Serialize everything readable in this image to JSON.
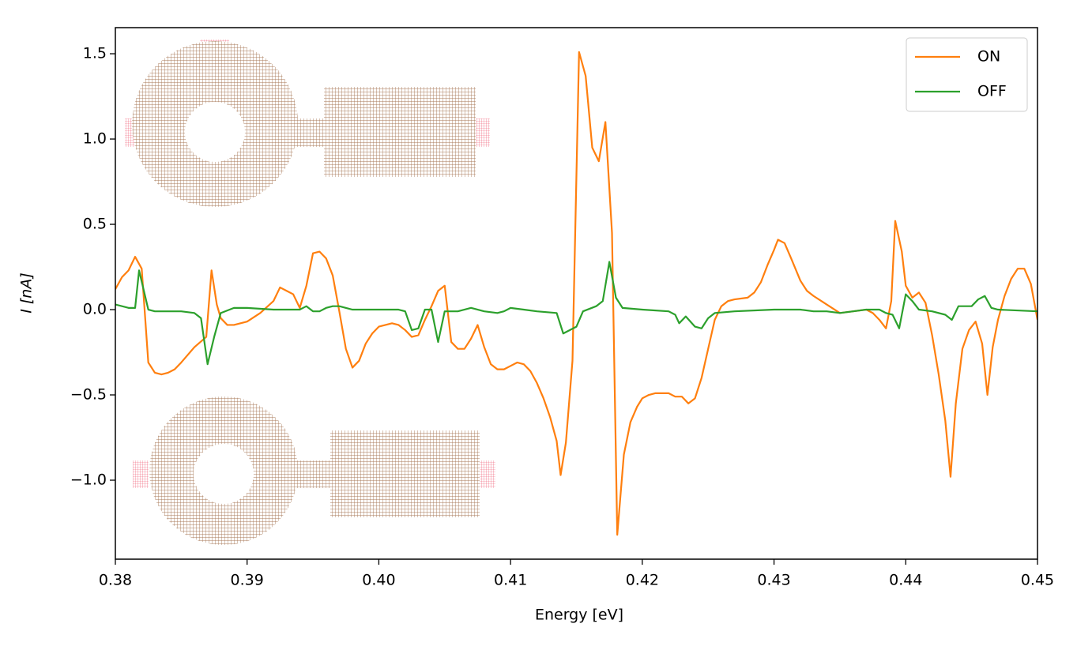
{
  "chart_data": {
    "type": "line",
    "x_label": "Energy [eV]",
    "y_label": "I [nA]",
    "xlim": [
      0.38,
      0.45
    ],
    "xticks": [
      0.38,
      0.39,
      {
        "value": 0.4,
        "label": "0.40"
      },
      0.41,
      0.42,
      0.43,
      0.44,
      0.45
    ],
    "ylim": [
      -1.463,
      1.653
    ],
    "yticks": [
      {
        "value": -1.0,
        "label": "−1.0"
      },
      {
        "value": -0.5,
        "label": "−0.5"
      },
      {
        "value": 0.0,
        "label": "0.0"
      },
      {
        "value": 0.5,
        "label": "0.5"
      },
      {
        "value": 1.0,
        "label": "1.0"
      },
      {
        "value": 1.5,
        "label": "1.5"
      }
    ],
    "legend": "upper right",
    "series": [
      {
        "name": "ON",
        "color": "#ff7f0e",
        "x": [
          0.38,
          0.3805,
          0.381,
          0.3815,
          0.382,
          0.3825,
          0.383,
          0.3835,
          0.384,
          0.3845,
          0.385,
          0.386,
          0.3869,
          0.3873,
          0.3877,
          0.388,
          0.3885,
          0.389,
          0.39,
          0.391,
          0.392,
          0.3925,
          0.393,
          0.3935,
          0.394,
          0.3945,
          0.395,
          0.3955,
          0.396,
          0.3965,
          0.397,
          0.3975,
          0.398,
          0.3985,
          0.399,
          0.3995,
          0.4,
          0.4005,
          0.401,
          0.4015,
          0.402,
          0.4025,
          0.403,
          0.4035,
          0.404,
          0.4045,
          0.405,
          0.4055,
          0.406,
          0.4065,
          0.407,
          0.4075,
          0.408,
          0.4085,
          0.409,
          0.4095,
          0.41,
          0.4105,
          0.411,
          0.4115,
          0.412,
          0.4125,
          0.413,
          0.4135,
          0.4138,
          0.4142,
          0.4147,
          0.4152,
          0.4157,
          0.4162,
          0.4167,
          0.4172,
          0.4177,
          0.4181,
          0.4186,
          0.4191,
          0.4196,
          0.42,
          0.4205,
          0.421,
          0.422,
          0.4225,
          0.423,
          0.4235,
          0.424,
          0.4245,
          0.425,
          0.4255,
          0.426,
          0.4265,
          0.427,
          0.428,
          0.4285,
          0.429,
          0.4295,
          0.43,
          0.4303,
          0.4308,
          0.4313,
          0.432,
          0.4325,
          0.433,
          0.434,
          0.435,
          0.436,
          0.437,
          0.4375,
          0.438,
          0.4385,
          0.4389,
          0.4392,
          0.4397,
          0.44,
          0.4405,
          0.441,
          0.4415,
          0.442,
          0.4425,
          0.443,
          0.4434,
          0.4438,
          0.4443,
          0.4448,
          0.4453,
          0.4458,
          0.4462,
          0.4466,
          0.447,
          0.4475,
          0.448,
          0.4485,
          0.449,
          0.4495,
          0.45
        ],
        "values": [
          0.12,
          0.19,
          0.23,
          0.31,
          0.24,
          -0.31,
          -0.37,
          -0.38,
          -0.37,
          -0.35,
          -0.31,
          -0.22,
          -0.16,
          0.23,
          0.03,
          -0.05,
          -0.09,
          -0.09,
          -0.07,
          -0.02,
          0.05,
          0.13,
          0.11,
          0.09,
          0.01,
          0.14,
          0.33,
          0.34,
          0.3,
          0.2,
          -0.01,
          -0.23,
          -0.34,
          -0.3,
          -0.2,
          -0.14,
          -0.1,
          -0.09,
          -0.08,
          -0.09,
          -0.12,
          -0.16,
          -0.15,
          -0.06,
          0.02,
          0.11,
          0.14,
          -0.19,
          -0.23,
          -0.23,
          -0.17,
          -0.09,
          -0.22,
          -0.32,
          -0.35,
          -0.35,
          -0.33,
          -0.31,
          -0.32,
          -0.36,
          -0.43,
          -0.52,
          -0.63,
          -0.77,
          -0.97,
          -0.78,
          -0.3,
          1.51,
          1.37,
          0.95,
          0.87,
          1.1,
          0.45,
          -1.32,
          -0.85,
          -0.66,
          -0.57,
          -0.52,
          -0.5,
          -0.49,
          -0.49,
          -0.51,
          -0.51,
          -0.55,
          -0.52,
          -0.4,
          -0.23,
          -0.06,
          0.02,
          0.05,
          0.06,
          0.07,
          0.1,
          0.16,
          0.26,
          0.35,
          0.41,
          0.39,
          0.3,
          0.17,
          0.11,
          0.08,
          0.03,
          -0.02,
          -0.01,
          0.0,
          -0.02,
          -0.06,
          -0.11,
          0.05,
          0.52,
          0.34,
          0.14,
          0.07,
          0.1,
          0.04,
          -0.15,
          -0.38,
          -0.65,
          -0.98,
          -0.55,
          -0.23,
          -0.12,
          -0.07,
          -0.2,
          -0.5,
          -0.22,
          -0.06,
          0.08,
          0.18,
          0.24,
          0.24,
          0.15,
          -0.06
        ]
      },
      {
        "name": "OFF",
        "color": "#2ca02c",
        "x": [
          0.38,
          0.381,
          0.3815,
          0.3818,
          0.3825,
          0.383,
          0.385,
          0.386,
          0.3865,
          0.387,
          0.3875,
          0.388,
          0.389,
          0.39,
          0.392,
          0.393,
          0.394,
          0.3945,
          0.395,
          0.3955,
          0.396,
          0.3965,
          0.397,
          0.398,
          0.4,
          0.4015,
          0.402,
          0.4025,
          0.403,
          0.4035,
          0.404,
          0.4045,
          0.405,
          0.406,
          0.407,
          0.408,
          0.409,
          0.4095,
          0.41,
          0.411,
          0.412,
          0.4135,
          0.414,
          0.415,
          0.4155,
          0.4165,
          0.417,
          0.4175,
          0.418,
          0.4185,
          0.42,
          0.422,
          0.4225,
          0.4228,
          0.4233,
          0.424,
          0.4245,
          0.425,
          0.4255,
          0.427,
          0.43,
          0.432,
          0.433,
          0.434,
          0.435,
          0.436,
          0.437,
          0.438,
          0.4385,
          0.439,
          0.4395,
          0.44,
          0.4405,
          0.441,
          0.442,
          0.443,
          0.4435,
          0.444,
          0.445,
          0.4455,
          0.446,
          0.4465,
          0.447,
          0.45
        ],
        "values": [
          0.03,
          0.01,
          0.01,
          0.23,
          0.0,
          -0.01,
          -0.01,
          -0.02,
          -0.05,
          -0.32,
          -0.16,
          -0.02,
          0.01,
          0.01,
          0.0,
          0.0,
          0.0,
          0.02,
          -0.01,
          -0.01,
          0.01,
          0.02,
          0.02,
          0.0,
          0.0,
          0.0,
          -0.01,
          -0.12,
          -0.11,
          0.0,
          0.0,
          -0.19,
          -0.01,
          -0.01,
          0.01,
          -0.01,
          -0.02,
          -0.01,
          0.01,
          0.0,
          -0.01,
          -0.02,
          -0.14,
          -0.1,
          -0.01,
          0.02,
          0.05,
          0.28,
          0.07,
          0.01,
          0.0,
          -0.01,
          -0.03,
          -0.08,
          -0.04,
          -0.1,
          -0.11,
          -0.05,
          -0.02,
          -0.01,
          0.0,
          0.0,
          -0.01,
          -0.01,
          -0.02,
          -0.01,
          0.0,
          0.0,
          -0.02,
          -0.03,
          -0.11,
          0.09,
          0.05,
          0.0,
          -0.01,
          -0.03,
          -0.06,
          0.02,
          0.02,
          0.06,
          0.08,
          0.01,
          0.0,
          -0.01
        ]
      }
    ]
  }
}
